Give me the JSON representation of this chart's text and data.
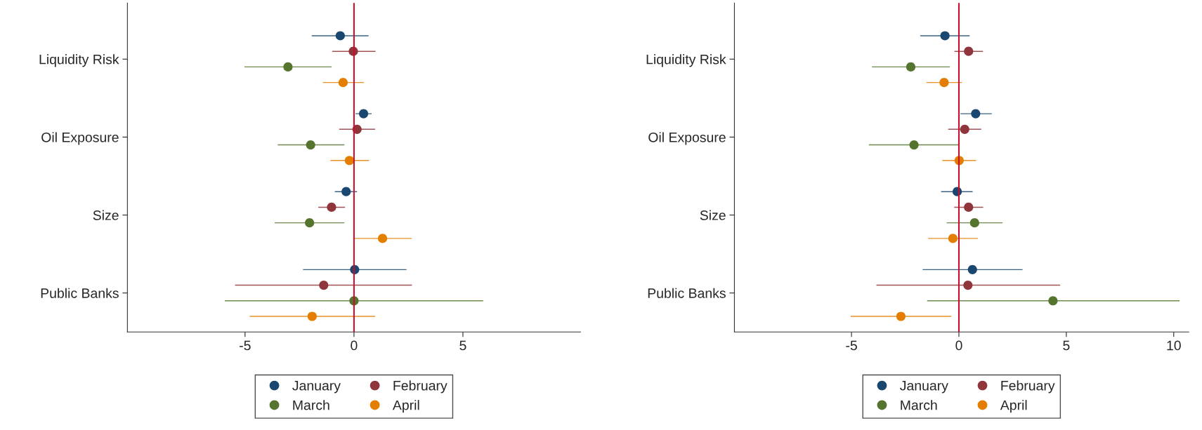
{
  "chart_data": [
    {
      "type": "scatter",
      "orientation": "horizontal",
      "categories": [
        "Liquidity Risk",
        "Oil Exposure",
        "Size",
        "Public Banks"
      ],
      "xlim": [
        -10.4,
        10.4
      ],
      "xticks": [
        -5,
        0,
        5
      ],
      "legend": "bottom",
      "marker": "circle",
      "grid": false,
      "ref_lines": [
        {
          "axis": "x",
          "value": 0,
          "color": "#c8102e"
        }
      ],
      "series": [
        {
          "name": "January",
          "color": "#1a476f",
          "values": [
            -0.63,
            0.44,
            -0.36,
            0.03
          ],
          "errors": [
            [
              -1.94,
              0.67
            ],
            [
              0.07,
              0.81
            ],
            [
              -0.88,
              0.14
            ],
            [
              -2.34,
              2.41
            ]
          ]
        },
        {
          "name": "February",
          "color": "#90353b",
          "values": [
            -0.03,
            0.14,
            -1.03,
            -1.39
          ],
          "errors": [
            [
              -1.0,
              0.99
            ],
            [
              -0.68,
              0.97
            ],
            [
              -1.64,
              -0.41
            ],
            [
              -5.46,
              2.66
            ]
          ]
        },
        {
          "name": "March",
          "color": "#55752f",
          "values": [
            -3.03,
            -1.99,
            -2.04,
            0.0
          ],
          "errors": [
            [
              -5.03,
              -1.03
            ],
            [
              -3.5,
              -0.44
            ],
            [
              -3.64,
              -0.44
            ],
            [
              -5.93,
              5.93
            ]
          ]
        },
        {
          "name": "April",
          "color": "#e37e00",
          "values": [
            -0.5,
            -0.21,
            1.31,
            -1.92
          ],
          "errors": [
            [
              -1.43,
              0.46
            ],
            [
              -1.08,
              0.69
            ],
            [
              0.0,
              2.65
            ],
            [
              -4.79,
              0.97
            ]
          ]
        }
      ]
    },
    {
      "type": "scatter",
      "orientation": "horizontal",
      "categories": [
        "Liquidity Risk",
        "Oil Exposure",
        "Size",
        "Public Banks"
      ],
      "xlim": [
        -10.45,
        10.7
      ],
      "xticks": [
        -5,
        0,
        5,
        10
      ],
      "legend": "bottom",
      "marker": "circle",
      "grid": false,
      "ref_lines": [
        {
          "axis": "x",
          "value": 0,
          "color": "#c8102e"
        }
      ],
      "series": [
        {
          "name": "January",
          "color": "#1a476f",
          "values": [
            -0.65,
            0.78,
            -0.08,
            0.63
          ],
          "errors": [
            [
              -1.8,
              0.5
            ],
            [
              0.07,
              1.53
            ],
            [
              -0.83,
              0.64
            ],
            [
              -1.69,
              2.96
            ]
          ]
        },
        {
          "name": "February",
          "color": "#90353b",
          "values": [
            0.45,
            0.27,
            0.45,
            0.42
          ],
          "errors": [
            [
              -0.21,
              1.12
            ],
            [
              -0.5,
              1.04
            ],
            [
              -0.22,
              1.13
            ],
            [
              -3.84,
              4.71
            ]
          ]
        },
        {
          "name": "March",
          "color": "#55752f",
          "values": [
            -2.24,
            -2.09,
            0.73,
            4.38
          ],
          "errors": [
            [
              -4.05,
              -0.42
            ],
            [
              -4.19,
              0.0
            ],
            [
              -0.57,
              2.03
            ],
            [
              -1.48,
              10.27
            ]
          ]
        },
        {
          "name": "April",
          "color": "#e37e00",
          "values": [
            -0.69,
            0.01,
            -0.28,
            -2.7
          ],
          "errors": [
            [
              -1.51,
              0.14
            ],
            [
              -0.77,
              0.8
            ],
            [
              -1.43,
              0.88
            ],
            [
              -5.04,
              -0.35
            ]
          ]
        }
      ]
    }
  ]
}
